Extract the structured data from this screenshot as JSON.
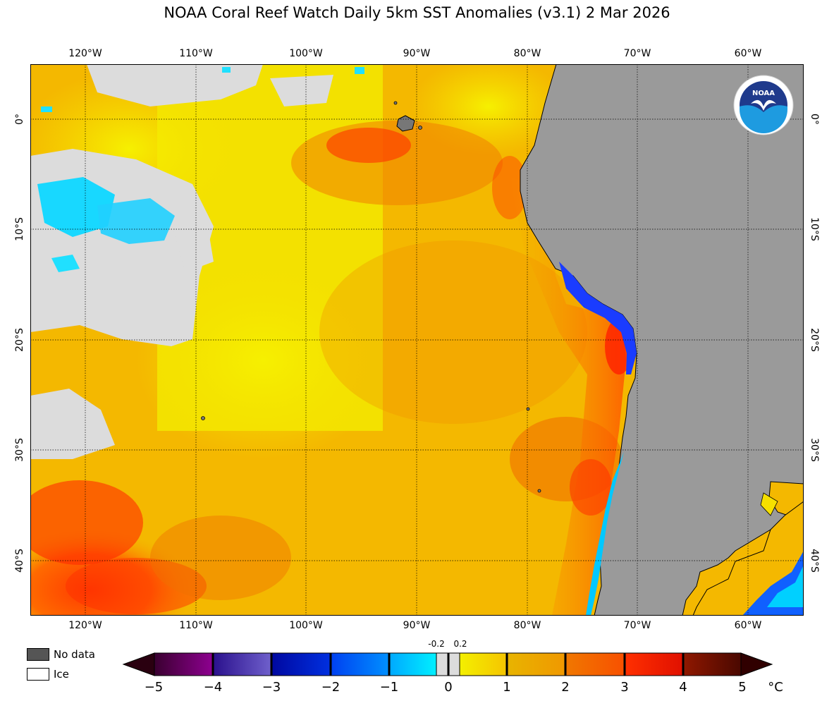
{
  "title": "NOAA Coral Reef Watch Daily 5km SST Anomalies  (v3.1)   2 Mar 2026",
  "lon_labels": [
    "120°W",
    "110°W",
    "100°W",
    "90°W",
    "80°W",
    "70°W",
    "60°W"
  ],
  "lat_labels": [
    "0°",
    "10°S",
    "20°S",
    "30°S",
    "40°S"
  ],
  "legend": {
    "no_data": "No data",
    "ice": "Ice"
  },
  "colorbar": {
    "ticks": [
      "−5",
      "−4",
      "−3",
      "−2",
      "−1",
      "0",
      "1",
      "2",
      "3",
      "4",
      "5"
    ],
    "small_ticks": [
      "-0.2",
      "0.2"
    ],
    "unit": "°C",
    "range": [
      -5,
      5
    ]
  },
  "colors": {
    "no_data": "#555555",
    "land": "#9a9a9a",
    "cloud": "#dcdcdc",
    "anomaly_scale": [
      "#2b0012",
      "#5a0050",
      "#8a0090",
      "#3a2a9c",
      "#6a5acc",
      "#0010a8",
      "#0044e0",
      "#0070ff",
      "#00aaff",
      "#00e8ff",
      "#dcdcdc",
      "#f2ef00",
      "#f5c400",
      "#e8b400",
      "#f07800",
      "#ff3000",
      "#e81400",
      "#8a1600",
      "#5a0a00",
      "#300000"
    ]
  },
  "logo": "NOAA"
}
